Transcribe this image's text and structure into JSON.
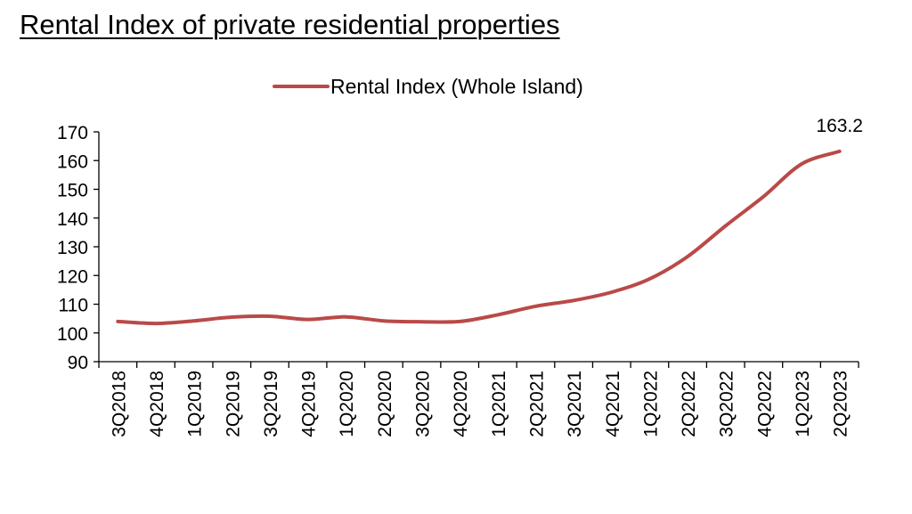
{
  "page": {
    "title": "Rental Index of private residential properties"
  },
  "chart_data": {
    "type": "line",
    "title": "",
    "xlabel": "",
    "ylabel": "",
    "categories": [
      "3Q2018",
      "4Q2018",
      "1Q2019",
      "2Q2019",
      "3Q2019",
      "4Q2019",
      "1Q2020",
      "2Q2020",
      "3Q2020",
      "4Q2020",
      "1Q2021",
      "2Q2021",
      "3Q2021",
      "4Q2021",
      "1Q2022",
      "2Q2022",
      "3Q2022",
      "4Q2022",
      "1Q2023",
      "2Q2023"
    ],
    "series": [
      {
        "name": "Rental Index (Whole Island)",
        "color": "#b94a48",
        "values": [
          104.0,
          103.3,
          104.2,
          105.5,
          105.8,
          104.7,
          105.6,
          104.2,
          103.9,
          104.0,
          106.3,
          109.3,
          111.3,
          114.2,
          118.8,
          126.6,
          137.3,
          147.5,
          158.8,
          163.2
        ]
      }
    ],
    "ylim": [
      90,
      170
    ],
    "yticks": [
      90,
      100,
      110,
      120,
      130,
      140,
      150,
      160,
      170
    ],
    "grid": false,
    "legend_position": "top-center",
    "annotations": [
      {
        "category": "2Q2023",
        "text": "163.2"
      }
    ]
  }
}
